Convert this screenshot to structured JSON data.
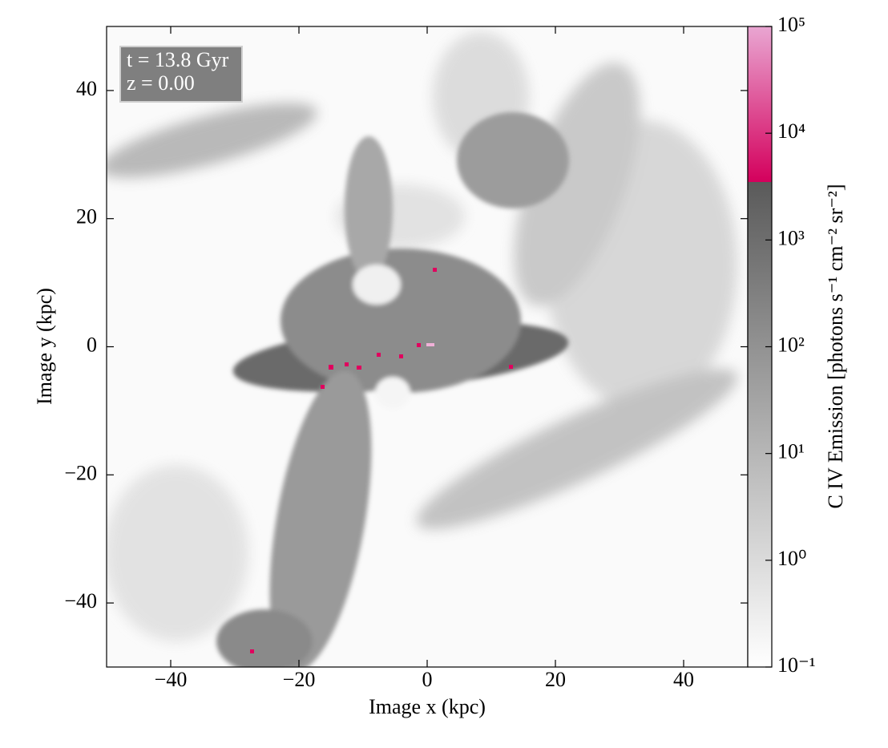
{
  "chart_data": {
    "type": "image",
    "xlabel": "Image x  (kpc)",
    "ylabel": "Image y  (kpc)",
    "xlim": [
      -50,
      50
    ],
    "ylim": [
      -50,
      50
    ],
    "xticks": [
      {
        "value": -40,
        "label": "−40"
      },
      {
        "value": -20,
        "label": "−20"
      },
      0,
      20,
      40
    ],
    "yticks": [
      {
        "value": -40,
        "label": "−40"
      },
      {
        "value": -20,
        "label": "−20"
      },
      0,
      20,
      40
    ],
    "annotation": [
      "t = 13.8 Gyr",
      "z = 0.00"
    ],
    "colorbar": {
      "label": "C IV Emission [photons s⁻¹ cm⁻² sr⁻²]",
      "scale": "log",
      "lim": [
        0.1,
        100000
      ],
      "ticks": [
        {
          "value": 0.1,
          "label": "10⁻¹"
        },
        {
          "value": 1,
          "label": "10⁰"
        },
        {
          "value": 10,
          "label": "10¹"
        },
        {
          "value": 100,
          "label": "10²"
        },
        {
          "value": 1000,
          "label": "10³"
        },
        {
          "value": 10000,
          "label": "10⁴"
        },
        {
          "value": 100000,
          "label": "10⁵"
        }
      ],
      "split": 3500,
      "colors": [
        "#ffffff",
        "#5a5a5a",
        "#d4005c",
        "#e9a6d2"
      ]
    }
  }
}
